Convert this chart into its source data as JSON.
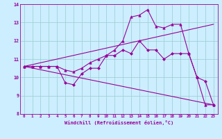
{
  "xlabel": "Windchill (Refroidissement éolien,°C)",
  "bg_color": "#cceeff",
  "line_color": "#990099",
  "grid_color": "#99cccc",
  "xmin": 0,
  "xmax": 23,
  "ymin": 8,
  "ymax": 14,
  "yticks": [
    8,
    9,
    10,
    11,
    12,
    13,
    14
  ],
  "xticks": [
    0,
    1,
    2,
    3,
    4,
    5,
    6,
    7,
    8,
    9,
    10,
    11,
    12,
    13,
    14,
    15,
    16,
    17,
    18,
    19,
    20,
    21,
    22,
    23
  ],
  "line1_x": [
    0,
    1,
    2,
    3,
    4,
    5,
    6,
    7,
    8,
    9,
    10,
    11,
    12,
    13,
    14,
    15,
    16,
    17,
    18,
    19,
    20,
    21,
    22,
    23
  ],
  "line1_y": [
    10.6,
    10.6,
    10.6,
    10.6,
    10.6,
    9.7,
    9.6,
    10.2,
    10.5,
    10.5,
    11.2,
    11.2,
    11.5,
    11.3,
    12.0,
    11.5,
    11.5,
    11.0,
    11.3,
    11.3,
    11.3,
    10.0,
    9.8,
    8.5
  ],
  "line2_x": [
    0,
    1,
    2,
    3,
    4,
    5,
    6,
    7,
    8,
    9,
    10,
    11,
    12,
    13,
    14,
    15,
    16,
    17,
    18,
    19,
    20,
    21,
    22,
    23
  ],
  "line2_y": [
    10.6,
    10.6,
    10.6,
    10.6,
    10.6,
    10.4,
    10.3,
    10.5,
    10.8,
    11.0,
    11.2,
    11.5,
    12.0,
    13.3,
    13.4,
    13.7,
    12.8,
    12.7,
    12.9,
    12.9,
    11.3,
    10.0,
    8.5,
    8.5
  ],
  "line3_x": [
    0,
    23
  ],
  "line3_y": [
    10.6,
    8.5
  ],
  "line4_x": [
    0,
    23
  ],
  "line4_y": [
    10.6,
    12.9
  ]
}
